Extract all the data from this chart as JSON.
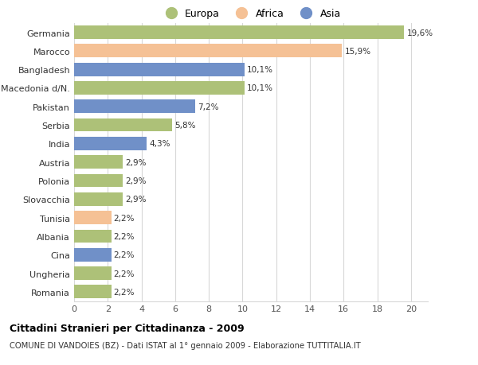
{
  "categories": [
    "Germania",
    "Marocco",
    "Bangladesh",
    "Macedonia d/N.",
    "Pakistan",
    "Serbia",
    "India",
    "Austria",
    "Polonia",
    "Slovacchia",
    "Tunisia",
    "Albania",
    "Cina",
    "Ungheria",
    "Romania"
  ],
  "values": [
    19.6,
    15.9,
    10.1,
    10.1,
    7.2,
    5.8,
    4.3,
    2.9,
    2.9,
    2.9,
    2.2,
    2.2,
    2.2,
    2.2,
    2.2
  ],
  "labels": [
    "19,6%",
    "15,9%",
    "10,1%",
    "10,1%",
    "7,2%",
    "5,8%",
    "4,3%",
    "2,9%",
    "2,9%",
    "2,9%",
    "2,2%",
    "2,2%",
    "2,2%",
    "2,2%",
    "2,2%"
  ],
  "continents": [
    "Europa",
    "Africa",
    "Asia",
    "Europa",
    "Asia",
    "Europa",
    "Asia",
    "Europa",
    "Europa",
    "Europa",
    "Africa",
    "Europa",
    "Asia",
    "Europa",
    "Europa"
  ],
  "colors": {
    "Europa": "#adc178",
    "Africa": "#f5c195",
    "Asia": "#7090c8"
  },
  "legend_labels": [
    "Europa",
    "Africa",
    "Asia"
  ],
  "title": "Cittadini Stranieri per Cittadinanza - 2009",
  "subtitle": "COMUNE DI VANDOIES (BZ) - Dati ISTAT al 1° gennaio 2009 - Elaborazione TUTTITALIA.IT",
  "xlim": [
    0,
    21
  ],
  "xticks": [
    0,
    2,
    4,
    6,
    8,
    10,
    12,
    14,
    16,
    18,
    20
  ],
  "bg_color": "#ffffff",
  "grid_color": "#d8d8d8",
  "bar_height": 0.72
}
